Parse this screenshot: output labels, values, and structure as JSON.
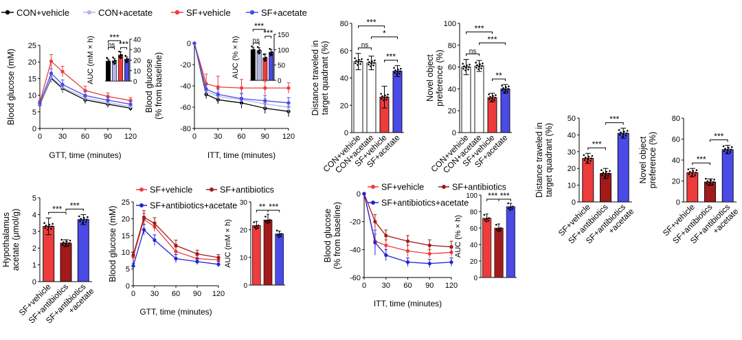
{
  "colors": {
    "con_vehicle": "#000000",
    "con_acetate": "#b4b7e8",
    "sf_vehicle": "#ee3b3b",
    "sf_acetate": "#4a4ae6",
    "sf_antibiotics": "#a21a1a",
    "sf_abx_acetate": "#2323d4"
  },
  "legend_top": [
    {
      "label": "CON+vehicle",
      "color": "#000000"
    },
    {
      "label": "CON+acetate",
      "color": "#b4b7e8"
    },
    {
      "label": "SF+vehicle",
      "color": "#ee3b3b"
    },
    {
      "label": "SF+acetate",
      "color": "#4a4ae6"
    }
  ],
  "chart_data": [
    {
      "id": "gtt-top",
      "type": "line",
      "xlabel": "GTT, time (minutes)",
      "ylabel": "Blood glucose (mM)",
      "xlim": [
        0,
        120
      ],
      "ylim": [
        0,
        25
      ],
      "xticks": [
        0,
        30,
        60,
        90,
        120
      ],
      "yticks": [
        0,
        5,
        10,
        15,
        20,
        25
      ],
      "x": [
        0,
        15,
        30,
        60,
        90,
        120
      ],
      "series": [
        {
          "name": "CON+vehicle",
          "color": "#000000",
          "values": [
            7.2,
            15.1,
            12.0,
            8.6,
            7.3,
            6.1
          ],
          "err": [
            0.6,
            1.2,
            1.2,
            1.1,
            1.0,
            0.8
          ]
        },
        {
          "name": "CON+acetate",
          "color": "#b4b7e8",
          "values": [
            7.4,
            15.5,
            12.4,
            9.2,
            7.8,
            6.6
          ],
          "err": [
            0.6,
            1.3,
            1.2,
            1.0,
            1.0,
            0.8
          ]
        },
        {
          "name": "SF+vehicle",
          "color": "#ee3b3b",
          "values": [
            7.9,
            20.2,
            17.1,
            11.4,
            9.6,
            8.4
          ],
          "err": [
            0.6,
            2.0,
            1.6,
            1.3,
            1.1,
            0.9
          ]
        },
        {
          "name": "SF+acetate",
          "color": "#4a4ae6",
          "values": [
            7.6,
            16.6,
            13.2,
            9.9,
            8.5,
            7.3
          ],
          "err": [
            0.6,
            1.4,
            1.4,
            1.1,
            1.0,
            0.8
          ]
        }
      ],
      "inset": {
        "ylabel": "AUC (mM × h)",
        "ylim": [
          0,
          40
        ],
        "yticks": [
          0,
          10,
          20,
          30,
          40
        ],
        "values": [
          19,
          19.5,
          25,
          21
        ],
        "err": [
          2,
          2,
          3,
          2
        ],
        "colors": [
          "#000000",
          "#b4b7e8",
          "#ee3b3b",
          "#4a4ae6"
        ],
        "sig": [
          {
            "i": 0,
            "j": 2,
            "label": "***",
            "level": 1
          },
          {
            "i": 0,
            "j": 1,
            "label": "ns",
            "level": 0
          },
          {
            "i": 2,
            "j": 3,
            "label": "***",
            "level": 0
          }
        ]
      }
    },
    {
      "id": "itt-top",
      "type": "line",
      "xlabel": "ITT, time (minutes)",
      "ylabel": "Blood glucose\n(% from baseline)",
      "xlim": [
        0,
        120
      ],
      "ylim": [
        -80,
        0
      ],
      "xticks": [
        0,
        30,
        60,
        90,
        120
      ],
      "yticks": [
        -80,
        -60,
        -40,
        -20,
        0
      ],
      "x": [
        0,
        15,
        30,
        60,
        90,
        120
      ],
      "series": [
        {
          "name": "CON+vehicle",
          "color": "#000000",
          "values": [
            0,
            -48,
            -53,
            -56,
            -61,
            -64
          ],
          "err": [
            0,
            4,
            4,
            5,
            5,
            5
          ]
        },
        {
          "name": "CON+acetate",
          "color": "#b4b7e8",
          "values": [
            0,
            -45,
            -50,
            -53,
            -57,
            -60
          ],
          "err": [
            0,
            4,
            4,
            5,
            5,
            5
          ]
        },
        {
          "name": "SF+vehicle",
          "color": "#ee3b3b",
          "values": [
            0,
            -38,
            -41,
            -42,
            -42,
            -42
          ],
          "err": [
            0,
            9,
            10,
            8,
            6,
            5
          ]
        },
        {
          "name": "SF+acetate",
          "color": "#4a4ae6",
          "values": [
            0,
            -43,
            -48,
            -52,
            -54,
            -56
          ],
          "err": [
            0,
            4,
            5,
            5,
            5,
            5
          ]
        }
      ],
      "inset": {
        "ylabel": "AUC (% × h)",
        "ylim": [
          0,
          150
        ],
        "yticks": [
          0,
          50,
          100,
          150
        ],
        "values": [
          100,
          98,
          74,
          92
        ],
        "err": [
          8,
          8,
          12,
          9
        ],
        "colors": [
          "#000000",
          "#b4b7e8",
          "#ee3b3b",
          "#4a4ae6"
        ],
        "sig": [
          {
            "i": 0,
            "j": 2,
            "label": "***",
            "level": 2
          },
          {
            "i": 0,
            "j": 1,
            "label": "ns",
            "level": 0
          },
          {
            "i": 2,
            "j": 3,
            "label": "***",
            "level": 1
          }
        ]
      }
    },
    {
      "id": "distance-top",
      "type": "bar",
      "ylabel": "Distance traveled in\ntarget quadrant (%)",
      "categories": [
        "CON+vehicle",
        "CON+acetate",
        "SF+vehicle",
        "SF+acetate"
      ],
      "values": [
        52,
        51,
        26,
        45
      ],
      "err": [
        6,
        5,
        8,
        4
      ],
      "ylim": [
        0,
        80
      ],
      "yticks": [
        0,
        20,
        40,
        60,
        80
      ],
      "fills": [
        "#ffffff",
        "#ffffff",
        "#ee3b3b",
        "#4a4ae6"
      ],
      "sig": [
        {
          "i": 0,
          "j": 1,
          "label": "ns",
          "level": 0
        },
        {
          "i": 0,
          "j": 2,
          "label": "***",
          "level": 2
        },
        {
          "i": 1,
          "j": 3,
          "label": "*",
          "level": 1
        },
        {
          "i": 2,
          "j": 3,
          "label": "***",
          "level": 0
        }
      ]
    },
    {
      "id": "novel-top",
      "type": "bar",
      "ylabel": "Novel object\npreference (%)",
      "categories": [
        "CON+vehicle",
        "CON+acetate",
        "SF+vehicle",
        "SF+acetate"
      ],
      "values": [
        60,
        61,
        32,
        40
      ],
      "err": [
        7,
        5,
        4,
        4
      ],
      "ylim": [
        0,
        100
      ],
      "yticks": [
        0,
        20,
        40,
        60,
        80,
        100
      ],
      "fills": [
        "#ffffff",
        "#ffffff",
        "#ee3b3b",
        "#4a4ae6"
      ],
      "sig": [
        {
          "i": 0,
          "j": 1,
          "label": "ns",
          "level": 0
        },
        {
          "i": 0,
          "j": 2,
          "label": "***",
          "level": 2
        },
        {
          "i": 1,
          "j": 3,
          "label": "***",
          "level": 1
        },
        {
          "i": 2,
          "j": 3,
          "label": "**",
          "level": 0
        }
      ]
    },
    {
      "id": "distance-right",
      "type": "bar",
      "ylabel": "Distance traveled in\ntarget quadrant (%)",
      "categories": [
        "SF+vehicle",
        "SF+antibiotics",
        "SF+antibiotics\n+acetate"
      ],
      "values": [
        26,
        17,
        41
      ],
      "err": [
        3,
        3,
        3
      ],
      "ylim": [
        0,
        50
      ],
      "yticks": [
        0,
        10,
        20,
        30,
        40,
        50
      ],
      "fills": [
        "#ee3b3b",
        "#a21a1a",
        "#4a4ae6"
      ],
      "sig": [
        {
          "i": 0,
          "j": 1,
          "label": "***",
          "level": 0
        },
        {
          "i": 1,
          "j": 2,
          "label": "***",
          "level": 0
        }
      ]
    },
    {
      "id": "novel-right",
      "type": "bar",
      "ylabel": "Novel object\npreference (%)",
      "categories": [
        "SF+vehicle",
        "SF+antibiotics",
        "SF+antibiotics\n+acetate"
      ],
      "values": [
        28,
        19,
        50
      ],
      "err": [
        4,
        3,
        4
      ],
      "ylim": [
        0,
        80
      ],
      "yticks": [
        0,
        20,
        40,
        60,
        80
      ],
      "fills": [
        "#ee3b3b",
        "#a21a1a",
        "#4a4ae6"
      ],
      "sig": [
        {
          "i": 0,
          "j": 1,
          "label": "***",
          "level": 0
        },
        {
          "i": 1,
          "j": 2,
          "label": "***",
          "level": 0
        }
      ]
    },
    {
      "id": "acetate-bottom",
      "type": "bar",
      "ylabel": "Hypothalamus\nacetate (μmol/g)",
      "categories": [
        "SF+vehicle",
        "SF+antibiotics",
        "SF+antibiotics\n+acetate"
      ],
      "values": [
        3.3,
        2.3,
        3.7
      ],
      "err": [
        0.5,
        0.2,
        0.3
      ],
      "ylim": [
        0,
        5
      ],
      "yticks": [
        0,
        1,
        2,
        3,
        4,
        5
      ],
      "fills": [
        "#ee3b3b",
        "#a21a1a",
        "#4a4ae6"
      ],
      "sig": [
        {
          "i": 0,
          "j": 1,
          "label": "***",
          "level": 0
        },
        {
          "i": 1,
          "j": 2,
          "label": "***",
          "level": 0
        }
      ]
    },
    {
      "id": "gtt-bottom",
      "type": "line",
      "xlabel": "GTT, time (minutes)",
      "ylabel": "Blood glucose (mM)",
      "xlim": [
        0,
        120
      ],
      "ylim": [
        0,
        25
      ],
      "xticks": [
        0,
        30,
        60,
        90,
        120
      ],
      "yticks": [
        0,
        5,
        10,
        15,
        20,
        25
      ],
      "x": [
        0,
        15,
        30,
        60,
        90,
        120
      ],
      "legend": [
        {
          "label": "SF+vehicle",
          "color": "#ee3b3b"
        },
        {
          "label": "SF+antibiotics",
          "color": "#a21a1a"
        },
        {
          "label": "SF+antibiotics+acetate",
          "color": "#2323d4"
        }
      ],
      "series": [
        {
          "name": "SF+vehicle",
          "color": "#ee3b3b",
          "values": [
            8.6,
            19.8,
            17.6,
            10.2,
            8.1,
            7.7
          ],
          "err": [
            0.7,
            1.8,
            1.4,
            1.3,
            0.9,
            0.8
          ]
        },
        {
          "name": "SF+antibiotics",
          "color": "#a21a1a",
          "values": [
            9.2,
            20.4,
            18.6,
            12.0,
            9.5,
            8.4
          ],
          "err": [
            0.7,
            2.0,
            1.7,
            1.6,
            1.1,
            0.9
          ]
        },
        {
          "name": "SF+antibiotics+acetate",
          "color": "#2323d4",
          "values": [
            5.9,
            16.7,
            13.6,
            8.1,
            7.2,
            6.4
          ],
          "err": [
            0.7,
            1.6,
            1.6,
            1.2,
            0.9,
            0.8
          ]
        }
      ],
      "inset": {
        "ylabel": "AUC (mM × h)",
        "ylim": [
          0,
          30
        ],
        "yticks": [
          0,
          10,
          20,
          30
        ],
        "values": [
          21.5,
          23.5,
          18.5
        ],
        "err": [
          1.5,
          2.0,
          1.0
        ],
        "colors": [
          "#ee3b3b",
          "#a21a1a",
          "#4a4ae6"
        ],
        "sig": [
          {
            "i": 0,
            "j": 1,
            "label": "**",
            "level": 0
          },
          {
            "i": 1,
            "j": 2,
            "label": "***",
            "level": 0
          }
        ]
      }
    },
    {
      "id": "itt-bottom",
      "type": "line",
      "xlabel": "ITT, time (minutes)",
      "ylabel": "Blood glucose\n(% from baseline)",
      "xlim": [
        0,
        120
      ],
      "ylim": [
        -60,
        0
      ],
      "xticks": [
        0,
        30,
        60,
        90,
        120
      ],
      "yticks": [
        -60,
        -40,
        -20,
        0
      ],
      "x": [
        0,
        15,
        30,
        60,
        90,
        120
      ],
      "legend": [
        {
          "label": "SF+vehicle",
          "color": "#ee3b3b"
        },
        {
          "label": "SF+antibiotics",
          "color": "#a21a1a"
        },
        {
          "label": "SF+antibiotics+acetate",
          "color": "#2323d4"
        }
      ],
      "series": [
        {
          "name": "SF+vehicle",
          "color": "#ee3b3b",
          "values": [
            0,
            -34,
            -37,
            -41,
            -43,
            -42
          ],
          "err": [
            0,
            5,
            4,
            4,
            3,
            3
          ]
        },
        {
          "name": "SF+antibiotics",
          "color": "#a21a1a",
          "values": [
            0,
            -20,
            -30,
            -34,
            -37,
            -38
          ],
          "err": [
            0,
            5,
            4,
            4,
            4,
            4
          ]
        },
        {
          "name": "SF+antibiotics+acetate",
          "color": "#2323d4",
          "values": [
            0,
            -35,
            -44,
            -49,
            -50,
            -49
          ],
          "err": [
            0,
            9,
            4,
            3,
            3,
            3
          ]
        }
      ],
      "inset": {
        "ylabel": "AUC (% × h)",
        "ylim": [
          0,
          100
        ],
        "yticks": [
          0,
          20,
          40,
          60,
          80,
          100
        ],
        "values": [
          72,
          60,
          86
        ],
        "err": [
          5,
          5,
          4
        ],
        "colors": [
          "#ee3b3b",
          "#a21a1a",
          "#4a4ae6"
        ],
        "sig": [
          {
            "i": 0,
            "j": 1,
            "label": "***",
            "level": 0
          },
          {
            "i": 1,
            "j": 2,
            "label": "***",
            "level": 0
          }
        ]
      }
    }
  ]
}
